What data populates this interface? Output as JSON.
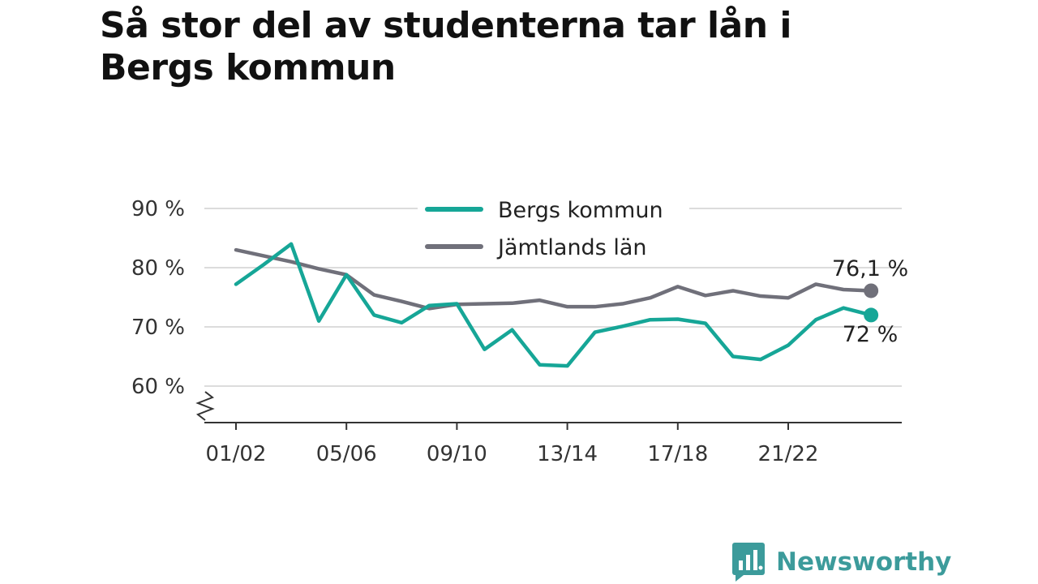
{
  "title": "Så stor del av studenterna tar lån i Bergs kommun",
  "brand": {
    "name": "Newsworthy",
    "icon": "newsworthy-logo-icon"
  },
  "chart_data": {
    "type": "line",
    "title": "Så stor del av studenterna tar lån i Bergs kommun",
    "xlabel": "",
    "ylabel": "",
    "x": [
      "01/02",
      "02/03",
      "03/04",
      "04/05",
      "05/06",
      "06/07",
      "07/08",
      "08/09",
      "09/10",
      "10/11",
      "11/12",
      "12/13",
      "13/14",
      "14/15",
      "15/16",
      "16/17",
      "17/18",
      "18/19",
      "19/20",
      "20/21",
      "21/22",
      "22/23",
      "23/24",
      "24/25"
    ],
    "x_tick_labels": [
      "01/02",
      "05/06",
      "09/10",
      "13/14",
      "17/18",
      "21/22"
    ],
    "y_ticks": [
      60,
      70,
      80,
      90
    ],
    "y_tick_labels": [
      "60 %",
      "70 %",
      "80 %",
      "90 %"
    ],
    "ylim": [
      54,
      92
    ],
    "y_axis_broken": true,
    "grid": "horizontal",
    "legend_position": "top-center",
    "series": [
      {
        "name": "Bergs kommun",
        "color": "#16a697",
        "values": [
          77.2,
          80.5,
          84.0,
          71.0,
          78.8,
          72.0,
          70.7,
          73.6,
          73.9,
          66.2,
          69.5,
          63.6,
          63.4,
          69.1,
          70.1,
          71.2,
          71.3,
          70.6,
          65.0,
          64.5,
          66.9,
          71.2,
          73.2,
          72.0
        ],
        "end_label": "72 %"
      },
      {
        "name": "Jämtlands län",
        "color": "#70707a",
        "values": [
          83.0,
          82.0,
          81.0,
          79.8,
          78.8,
          75.4,
          74.3,
          73.1,
          73.8,
          73.9,
          74.0,
          74.5,
          73.4,
          73.4,
          73.9,
          74.9,
          76.8,
          75.3,
          76.1,
          75.2,
          74.9,
          77.2,
          76.3,
          76.1
        ],
        "end_label": "76,1 %"
      }
    ]
  }
}
